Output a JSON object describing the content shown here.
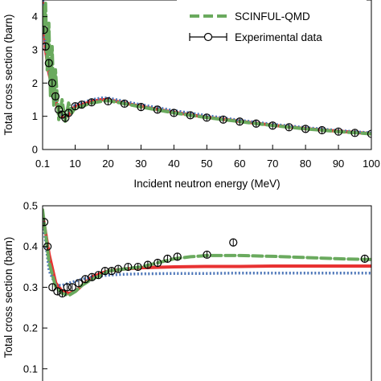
{
  "chart_data": [
    {
      "type": "line",
      "xlabel": "Incident neutron energy (MeV)",
      "ylabel": "Total cross section (barn)",
      "xlim": [
        0.1,
        100
      ],
      "ylim": [
        0,
        4.5
      ],
      "xticks": [
        0.1,
        10,
        20,
        30,
        40,
        50,
        60,
        70,
        80,
        90,
        100
      ],
      "xtick_labels": [
        "0.1",
        "10",
        "20",
        "30",
        "40",
        "50",
        "60",
        "70",
        "80",
        "90",
        "100"
      ],
      "yticks": [
        0,
        1,
        2,
        3,
        4
      ],
      "grid": false,
      "legend": {
        "placement": "top-right",
        "entries": [
          {
            "label": "SCINFUL-QMD",
            "style": "dashed",
            "color": "#6aaa5e"
          },
          {
            "label": "Experimental data",
            "style": "marker-errorbar",
            "color": "#000000"
          }
        ]
      },
      "series": [
        {
          "color": "#e83232",
          "style": "solid",
          "x": [
            0.1,
            0.5,
            1,
            2,
            3,
            4,
            5,
            6,
            7,
            8,
            10,
            12,
            15,
            18,
            20,
            25,
            30,
            40,
            50,
            60,
            70,
            80,
            90,
            100
          ],
          "y": [
            4.5,
            3.9,
            3.0,
            2.3,
            1.9,
            1.5,
            1.15,
            1.0,
            0.95,
            1.05,
            1.3,
            1.35,
            1.45,
            1.5,
            1.5,
            1.4,
            1.3,
            1.12,
            0.97,
            0.85,
            0.73,
            0.63,
            0.55,
            0.48
          ]
        },
        {
          "color": "#4a74b8",
          "style": "dotted",
          "x": [
            0.1,
            0.5,
            1,
            2,
            3,
            4,
            5,
            6,
            7,
            8,
            10,
            12,
            15,
            18,
            20,
            25,
            30,
            40,
            50,
            60,
            70,
            80,
            90,
            100
          ],
          "y": [
            4.6,
            4.0,
            3.1,
            2.35,
            1.95,
            1.55,
            1.2,
            1.05,
            1.0,
            1.1,
            1.35,
            1.4,
            1.5,
            1.55,
            1.55,
            1.45,
            1.35,
            1.17,
            1.02,
            0.88,
            0.76,
            0.66,
            0.57,
            0.5
          ]
        },
        {
          "name": "SCINFUL-QMD",
          "color": "#6aaa5e",
          "style": "dashed",
          "x": [
            0.1,
            0.5,
            1,
            1.5,
            2,
            2.5,
            3,
            3.5,
            4,
            5,
            6,
            7,
            8,
            9,
            10,
            12,
            15,
            18,
            20,
            25,
            30,
            40,
            50,
            60,
            70,
            80,
            90,
            100
          ],
          "y": [
            4.3,
            3.5,
            4.4,
            2.4,
            3.8,
            1.6,
            3.1,
            1.3,
            2.4,
            0.9,
            1.5,
            0.85,
            1.4,
            1.1,
            1.25,
            1.3,
            1.4,
            1.45,
            1.47,
            1.38,
            1.28,
            1.1,
            0.96,
            0.84,
            0.72,
            0.62,
            0.54,
            0.47
          ]
        },
        {
          "name": "Experimental data",
          "color": "#000000",
          "style": "markers",
          "x": [
            0.5,
            1,
            2,
            3,
            4,
            5,
            6,
            7,
            8,
            10,
            12,
            15,
            20,
            25,
            30,
            35,
            40,
            45,
            50,
            55,
            60,
            65,
            70,
            75,
            80,
            85,
            90,
            95,
            100
          ],
          "y": [
            3.6,
            3.1,
            2.6,
            2.0,
            1.6,
            1.2,
            1.05,
            0.95,
            1.1,
            1.3,
            1.35,
            1.42,
            1.45,
            1.38,
            1.28,
            1.2,
            1.1,
            1.03,
            0.96,
            0.9,
            0.84,
            0.78,
            0.72,
            0.67,
            0.62,
            0.58,
            0.54,
            0.5,
            0.47
          ]
        }
      ]
    },
    {
      "type": "line",
      "xlabel": "",
      "ylabel": "Total cross section (barn)",
      "xlim": [
        0,
        100
      ],
      "ylim": [
        0.07,
        0.5
      ],
      "yticks": [
        0.1,
        0.2,
        0.3,
        0.4,
        0.5
      ],
      "grid": false,
      "series": [
        {
          "color": "#e83232",
          "style": "solid",
          "x": [
            0,
            2,
            4,
            6,
            8,
            10,
            12,
            15,
            18,
            20,
            25,
            30,
            40,
            50,
            60,
            70,
            80,
            90,
            100
          ],
          "y": [
            0.48,
            0.38,
            0.31,
            0.29,
            0.285,
            0.29,
            0.305,
            0.325,
            0.335,
            0.34,
            0.345,
            0.348,
            0.35,
            0.351,
            0.351,
            0.352,
            0.352,
            0.352,
            0.352
          ]
        },
        {
          "color": "#4a74b8",
          "style": "dotted",
          "x": [
            0,
            2,
            4,
            6,
            8,
            10,
            12,
            15,
            18,
            20,
            25,
            30,
            40,
            50,
            60,
            70,
            80,
            90,
            100
          ],
          "y": [
            0.47,
            0.34,
            0.305,
            0.305,
            0.31,
            0.315,
            0.32,
            0.325,
            0.328,
            0.33,
            0.332,
            0.333,
            0.334,
            0.334,
            0.335,
            0.335,
            0.335,
            0.335,
            0.335
          ]
        },
        {
          "name": "SCINFUL-QMD",
          "color": "#6aaa5e",
          "style": "dashed",
          "x": [
            0,
            2,
            4,
            6,
            8,
            10,
            12,
            15,
            18,
            20,
            25,
            30,
            35,
            40,
            45,
            50,
            60,
            70,
            80,
            90,
            100
          ],
          "y": [
            0.49,
            0.36,
            0.3,
            0.285,
            0.28,
            0.29,
            0.305,
            0.32,
            0.33,
            0.34,
            0.345,
            0.35,
            0.36,
            0.37,
            0.375,
            0.378,
            0.378,
            0.376,
            0.373,
            0.37,
            0.368
          ]
        },
        {
          "name": "Experimental data",
          "color": "#000000",
          "style": "markers",
          "x": [
            0.5,
            1.5,
            3,
            4.5,
            6,
            7.5,
            9,
            11,
            13,
            15,
            17,
            19,
            21,
            23,
            26,
            29,
            32,
            35,
            38,
            41,
            50,
            58,
            98
          ],
          "y": [
            0.46,
            0.4,
            0.3,
            0.29,
            0.285,
            0.3,
            0.3,
            0.31,
            0.32,
            0.325,
            0.33,
            0.34,
            0.34,
            0.345,
            0.35,
            0.35,
            0.355,
            0.36,
            0.37,
            0.375,
            0.38,
            0.41,
            0.37
          ]
        }
      ]
    }
  ]
}
